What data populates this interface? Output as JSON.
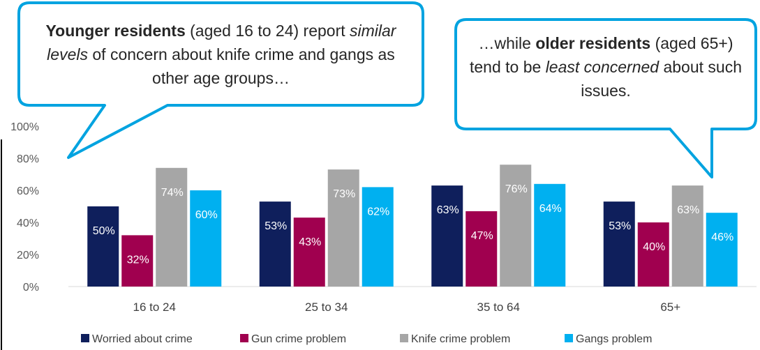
{
  "chart_data": {
    "type": "bar",
    "categories": [
      "16 to 24",
      "25 to 34",
      "35 to 64",
      "65+"
    ],
    "series": [
      {
        "name": "Worried about crime",
        "values": [
          50,
          53,
          63,
          53
        ],
        "color": "#0f1f5c"
      },
      {
        "name": "Gun crime problem",
        "values": [
          32,
          43,
          47,
          40
        ],
        "color": "#a0004f"
      },
      {
        "name": "Knife crime problem",
        "values": [
          74,
          73,
          76,
          63
        ],
        "color": "#a6a6a6"
      },
      {
        "name": "Gangs problem",
        "values": [
          60,
          62,
          64,
          46
        ],
        "color": "#00b0f0"
      }
    ],
    "y_ticks": [
      "0%",
      "20%",
      "40%",
      "60%",
      "80%",
      "100%"
    ],
    "ylim": [
      0,
      100
    ],
    "value_suffix": "%",
    "legend_position": "bottom",
    "grid": false
  },
  "callouts": {
    "left": {
      "bold": "Younger residents",
      "text1": " (aged 16 to 24) report ",
      "italic": "similar levels",
      "text2": " of concern about knife crime and gangs as other age groups…"
    },
    "right": {
      "text1": "…while ",
      "bold": "older residents",
      "text2": " (aged 65+) tend to be ",
      "italic": "least concerned",
      "text3": " about such issues."
    }
  },
  "colors": {
    "callout_border": "#00a3e0",
    "axis": "#d9d9d9"
  }
}
